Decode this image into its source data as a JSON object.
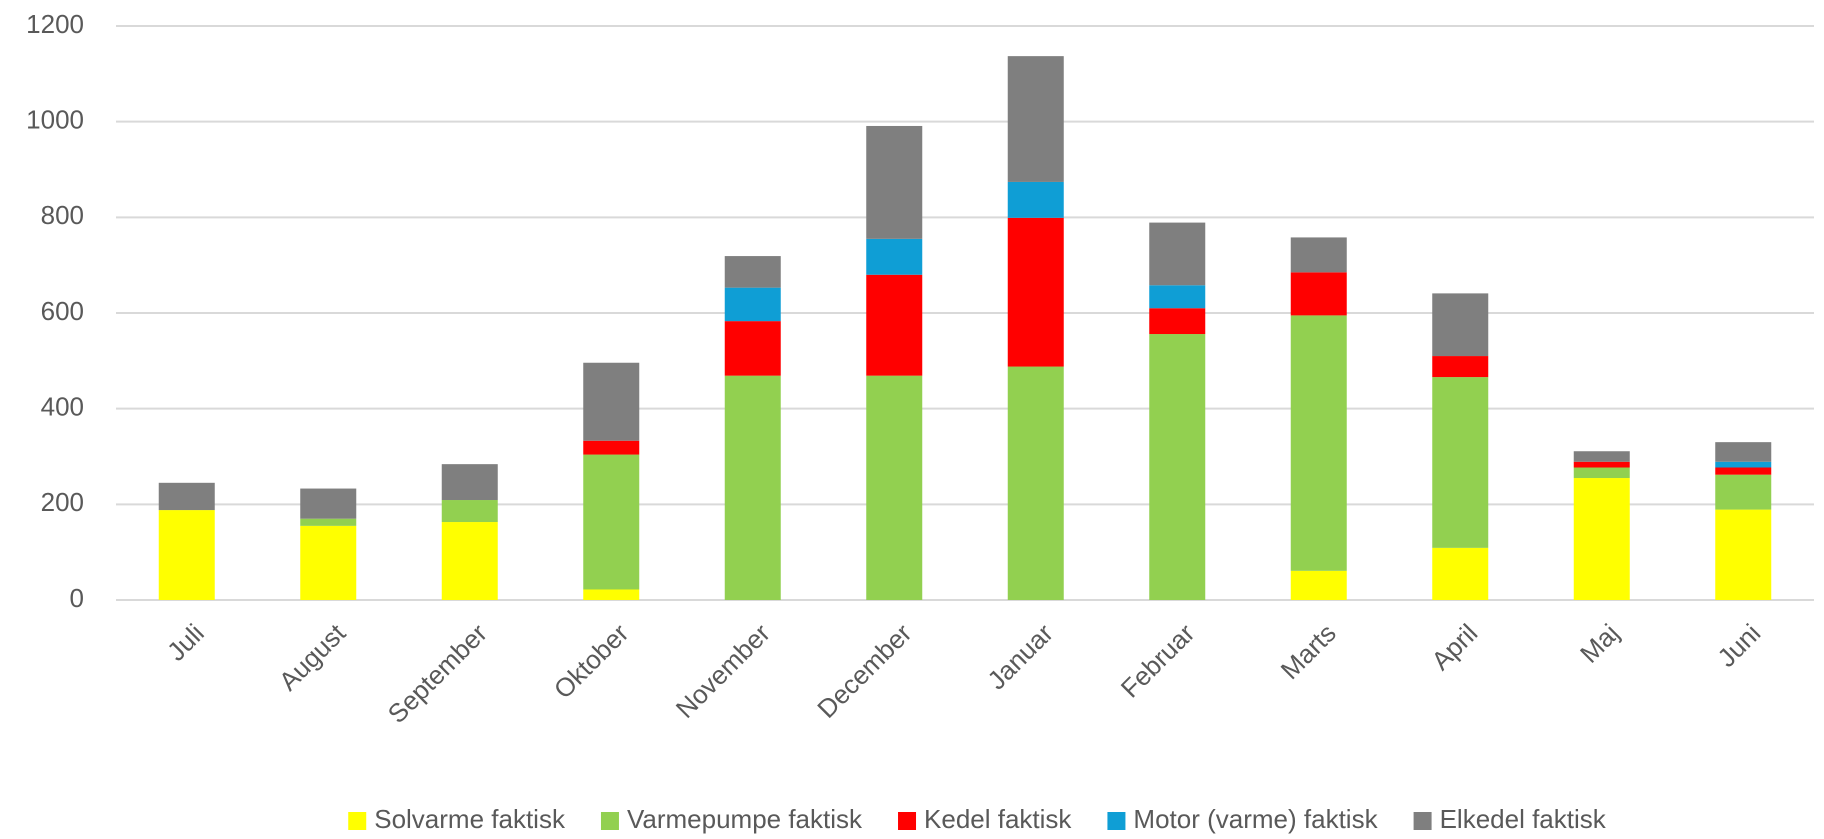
{
  "chart_data": {
    "type": "stacked_bar",
    "categories": [
      "Juli",
      "August",
      "September",
      "Oktober",
      "November",
      "December",
      "Januar",
      "Februar",
      "Marts",
      "April",
      "Maj",
      "Juni"
    ],
    "series": [
      {
        "name": "Solvarme faktisk",
        "color": "#ffff00",
        "values": [
          188,
          155,
          163,
          22,
          0,
          0,
          0,
          0,
          61,
          109,
          255,
          189
        ]
      },
      {
        "name": "Varmepumpe faktisk",
        "color": "#92d050",
        "values": [
          0,
          15,
          46,
          282,
          469,
          469,
          488,
          556,
          534,
          357,
          22,
          73
        ]
      },
      {
        "name": "Kedel faktisk",
        "color": "#ff0000",
        "values": [
          0,
          0,
          0,
          29,
          114,
          211,
          311,
          54,
          90,
          44,
          12,
          15
        ]
      },
      {
        "name": "Motor (varme) faktisk",
        "color": "#0f9ed5",
        "values": [
          0,
          0,
          0,
          0,
          70,
          75,
          75,
          48,
          0,
          0,
          0,
          12
        ]
      },
      {
        "name": "Elkedel faktisk",
        "color": "#7f7f7f",
        "values": [
          57,
          63,
          75,
          163,
          66,
          236,
          263,
          131,
          73,
          131,
          22,
          41
        ]
      }
    ],
    "ylim": [
      0,
      1200
    ],
    "yticks": [
      0,
      200,
      400,
      600,
      800,
      1000,
      1200
    ],
    "grid": true,
    "legend": "bottom"
  }
}
